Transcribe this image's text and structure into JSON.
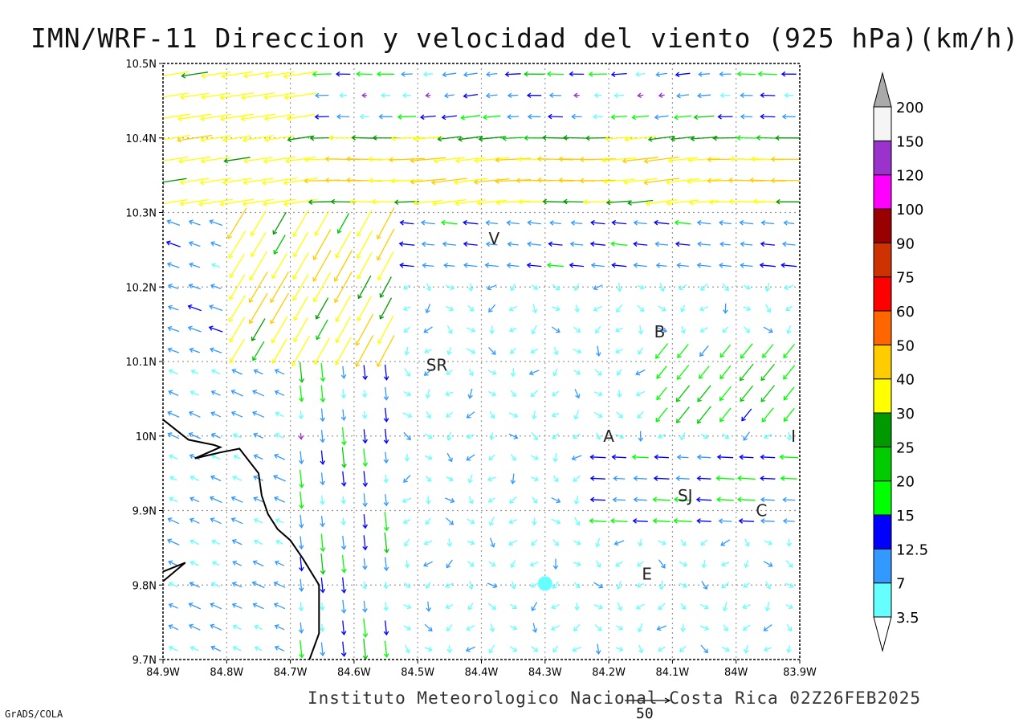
{
  "title": "IMN/WRF-11 Direccion y velocidad del viento (925 hPa)(km/h)",
  "footer": "Instituto Meteorologico Nacional Costa Rica 02Z26FEB2025",
  "grads_label": "GrADS/COLA",
  "reference_vector": {
    "label": "50"
  },
  "axes": {
    "x_ticks": [
      "84.9W",
      "84.8W",
      "84.7W",
      "84.6W",
      "84.5W",
      "84.4W",
      "84.3W",
      "84.2W",
      "84.1W",
      "84W",
      "83.9W"
    ],
    "y_ticks": [
      "10.5N",
      "10.4N",
      "10.3N",
      "10.2N",
      "10.1N",
      "10N",
      "9.9N",
      "9.8N",
      "9.7N"
    ],
    "lon_range": [
      -84.9,
      -83.9
    ],
    "lat_range": [
      9.7,
      10.5
    ],
    "grid": true
  },
  "cities": [
    {
      "label": "V",
      "lon": -84.38,
      "lat": 10.265
    },
    {
      "label": "B",
      "lon": -84.12,
      "lat": 10.14
    },
    {
      "label": "SR",
      "lon": -84.47,
      "lat": 10.095
    },
    {
      "label": "A",
      "lon": -84.2,
      "lat": 10.0
    },
    {
      "label": "I",
      "lon": -83.91,
      "lat": 10.0
    },
    {
      "label": "SJ",
      "lon": -84.08,
      "lat": 9.92
    },
    {
      "label": "C",
      "lon": -83.96,
      "lat": 9.9
    },
    {
      "label": "E",
      "lon": -84.14,
      "lat": 9.815
    }
  ],
  "colorbar": {
    "labels": [
      "3.5",
      "7",
      "12.5",
      "15",
      "20",
      "25",
      "30",
      "40",
      "50",
      "60",
      "75",
      "90",
      "100",
      "120",
      "150",
      "200"
    ],
    "colors": [
      "#66ffff",
      "#3399ff",
      "#0000ff",
      "#00ff00",
      "#00cc00",
      "#009900",
      "#ffff00",
      "#ffcc00",
      "#ff6600",
      "#ff0000",
      "#cc3300",
      "#990000",
      "#ff00ff",
      "#9933cc",
      "#f5f5f5"
    ],
    "top_color": "#aaaaaa"
  },
  "coastline": [
    [
      -84.9,
      10.022
    ],
    [
      -84.86,
      9.995
    ],
    [
      -84.82,
      9.988
    ],
    [
      -84.81,
      9.985
    ],
    [
      -84.85,
      9.97
    ],
    [
      -84.81,
      9.978
    ],
    [
      -84.78,
      9.983
    ],
    [
      -84.75,
      9.95
    ],
    [
      -84.745,
      9.92
    ],
    [
      -84.735,
      9.895
    ],
    [
      -84.72,
      9.875
    ],
    [
      -84.7,
      9.86
    ],
    [
      -84.68,
      9.835
    ],
    [
      -84.655,
      9.8
    ],
    [
      -84.655,
      9.735
    ],
    [
      -84.67,
      9.7
    ]
  ],
  "coastline_hook": [
    [
      -84.9,
      9.805
    ],
    [
      -84.865,
      9.83
    ],
    [
      -84.9,
      9.818
    ]
  ]
}
